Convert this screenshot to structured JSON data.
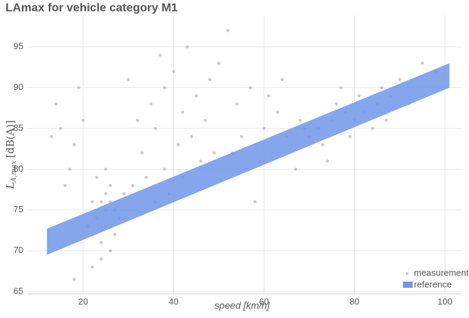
{
  "chart_data": {
    "type": "scatter",
    "title": "LAmax for vehicle category M1",
    "x_label": "speed [km/h]",
    "y_label": [
      "L",
      "A,max",
      "[dB(A)]"
    ],
    "xlim": [
      7.7,
      103.8
    ],
    "ylim": [
      64.7,
      98.9
    ],
    "xticks": [
      20,
      40,
      60,
      80,
      100
    ],
    "yticks": [
      65,
      70,
      75,
      80,
      85,
      90,
      95
    ],
    "grid": true,
    "legend": "bottom-right",
    "series": [
      {
        "name": "measurement",
        "color": "#8c8c8c",
        "x": [
          22,
          23,
          24,
          25,
          26,
          24,
          27,
          25,
          23,
          26,
          28,
          22,
          25,
          24,
          27,
          26,
          29,
          21,
          25,
          24,
          15,
          18,
          17,
          14,
          20,
          19,
          16,
          13,
          18,
          22,
          32,
          35,
          38,
          40,
          36,
          42,
          45,
          33,
          38,
          41,
          44,
          47,
          30,
          37,
          43,
          48,
          50,
          34,
          39,
          46,
          49,
          31,
          36,
          42,
          52,
          55,
          58,
          60,
          62,
          65,
          68,
          56,
          59,
          63,
          66,
          69,
          54,
          57,
          61,
          64,
          67,
          70,
          53,
          58,
          72,
          75,
          78,
          80,
          73,
          76,
          82,
          85,
          88,
          90,
          95,
          98,
          74,
          79,
          84,
          87,
          92,
          77,
          81,
          86
        ],
        "y": [
          72,
          74,
          76,
          73,
          78,
          71,
          75,
          77,
          79,
          70,
          74,
          76,
          75,
          73,
          72,
          76,
          77,
          73,
          80,
          69,
          85,
          83,
          80,
          88,
          86,
          90,
          78,
          84,
          66.5,
          68,
          86,
          88,
          90,
          92,
          85,
          87,
          89,
          82,
          80,
          83,
          84,
          86,
          91,
          94,
          95,
          91,
          93,
          79,
          77,
          81,
          82,
          78,
          76,
          79,
          97,
          84,
          83,
          85,
          82,
          84,
          86,
          80,
          81,
          87,
          83,
          85,
          88,
          90,
          89,
          91,
          80,
          84,
          82,
          76,
          85,
          86,
          87,
          86,
          83,
          88,
          87,
          88,
          89,
          91,
          93,
          92,
          81,
          84,
          85,
          86,
          88,
          90,
          89,
          90
        ]
      },
      {
        "name": "reference",
        "color": "#7095ea",
        "x": [
          12,
          101
        ],
        "lower": [
          69.5,
          90
        ],
        "upper": [
          72.7,
          93
        ]
      }
    ]
  }
}
